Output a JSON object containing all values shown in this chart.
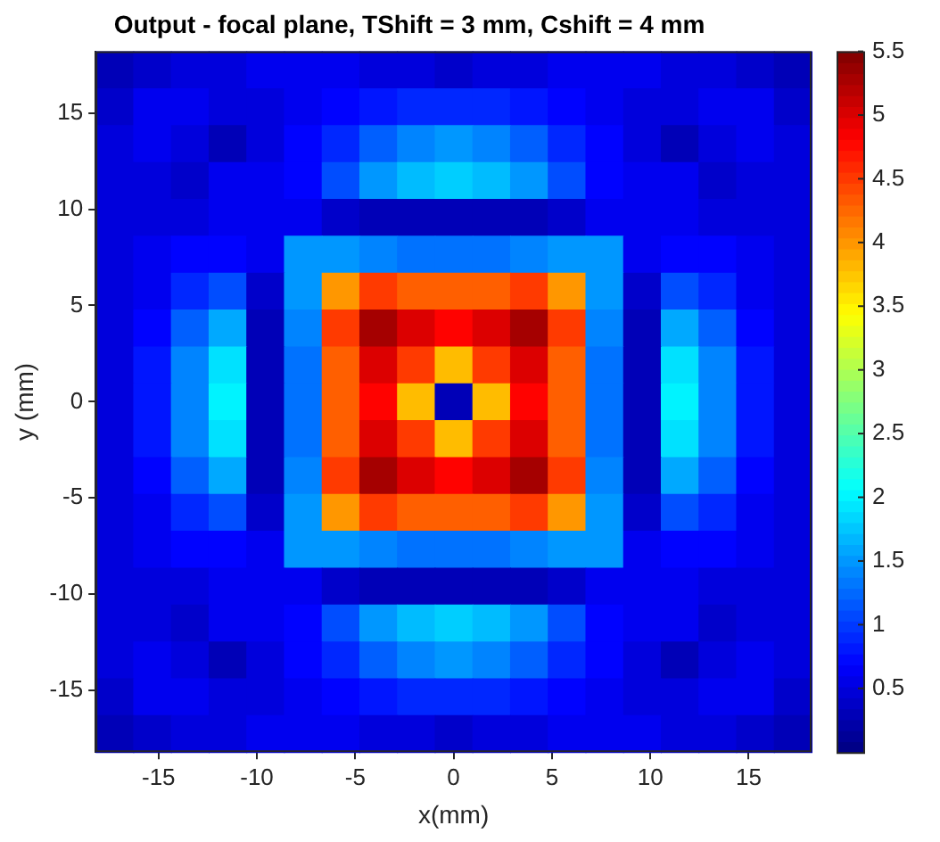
{
  "chart_data": {
    "type": "heatmap",
    "title": "Output - focal plane, TShift = 3 mm, Cshift = 4 mm",
    "xlabel": "x(mm)",
    "ylabel": "y (mm)",
    "xlim": [
      -18.2,
      18.2
    ],
    "ylim": [
      -18.2,
      18.2
    ],
    "xticks": [
      -15,
      -10,
      -5,
      0,
      5,
      10,
      15
    ],
    "yticks": [
      -15,
      -10,
      -5,
      0,
      5,
      10,
      15
    ],
    "clim": [
      0,
      5.5
    ],
    "cticks": [
      0.5,
      1,
      1.5,
      2,
      2.5,
      3,
      3.5,
      4,
      4.5,
      5,
      5.5
    ],
    "grid": false,
    "cells": [
      [
        0.3,
        0.4,
        0.5,
        0.5,
        0.6,
        0.6,
        0.6,
        0.5,
        0.5,
        0.4,
        0.5,
        0.5,
        0.6,
        0.6,
        0.6,
        0.5,
        0.5,
        0.4,
        0.3
      ],
      [
        0.4,
        0.6,
        0.6,
        0.5,
        0.5,
        0.6,
        0.7,
        0.8,
        0.9,
        0.9,
        0.9,
        0.8,
        0.7,
        0.6,
        0.5,
        0.5,
        0.6,
        0.6,
        0.4
      ],
      [
        0.5,
        0.6,
        0.5,
        0.3,
        0.5,
        0.7,
        0.9,
        1.2,
        1.4,
        1.5,
        1.4,
        1.2,
        0.9,
        0.7,
        0.5,
        0.3,
        0.5,
        0.6,
        0.5
      ],
      [
        0.5,
        0.5,
        0.4,
        0.6,
        0.6,
        0.7,
        1.1,
        1.5,
        1.7,
        1.8,
        1.7,
        1.5,
        1.1,
        0.7,
        0.6,
        0.6,
        0.4,
        0.5,
        0.5
      ],
      [
        0.5,
        0.5,
        0.5,
        0.6,
        0.6,
        0.6,
        0.4,
        0.3,
        0.3,
        0.3,
        0.3,
        0.3,
        0.4,
        0.6,
        0.6,
        0.6,
        0.5,
        0.5,
        0.5
      ],
      [
        0.5,
        0.6,
        0.7,
        0.7,
        0.6,
        1.5,
        1.5,
        1.4,
        1.3,
        1.3,
        1.3,
        1.4,
        1.5,
        1.5,
        0.6,
        0.7,
        0.7,
        0.6,
        0.5
      ],
      [
        0.5,
        0.6,
        0.9,
        1.1,
        0.4,
        1.5,
        4.0,
        4.5,
        4.3,
        4.3,
        4.3,
        4.5,
        4.0,
        1.5,
        0.4,
        1.1,
        0.9,
        0.6,
        0.5
      ],
      [
        0.5,
        0.7,
        1.2,
        1.6,
        0.3,
        1.4,
        4.5,
        5.3,
        5.0,
        4.8,
        5.0,
        5.3,
        4.5,
        1.4,
        0.3,
        1.6,
        1.2,
        0.7,
        0.5
      ],
      [
        0.5,
        0.8,
        1.4,
        1.9,
        0.3,
        1.3,
        4.3,
        5.0,
        4.5,
        3.8,
        4.5,
        5.0,
        4.3,
        1.3,
        0.3,
        1.9,
        1.4,
        0.8,
        0.5
      ],
      [
        0.5,
        0.8,
        1.4,
        2.0,
        0.3,
        1.3,
        4.3,
        4.8,
        3.8,
        0.3,
        3.8,
        4.8,
        4.3,
        1.3,
        0.3,
        2.0,
        1.4,
        0.8,
        0.5
      ],
      [
        0.5,
        0.8,
        1.4,
        1.9,
        0.3,
        1.3,
        4.3,
        5.0,
        4.5,
        3.8,
        4.5,
        5.0,
        4.3,
        1.3,
        0.3,
        1.9,
        1.4,
        0.8,
        0.5
      ],
      [
        0.5,
        0.7,
        1.2,
        1.6,
        0.3,
        1.4,
        4.5,
        5.3,
        5.0,
        4.8,
        5.0,
        5.3,
        4.5,
        1.4,
        0.3,
        1.6,
        1.2,
        0.7,
        0.5
      ],
      [
        0.5,
        0.6,
        0.9,
        1.1,
        0.4,
        1.5,
        4.0,
        4.5,
        4.3,
        4.3,
        4.3,
        4.5,
        4.0,
        1.5,
        0.4,
        1.1,
        0.9,
        0.6,
        0.5
      ],
      [
        0.5,
        0.6,
        0.7,
        0.7,
        0.6,
        1.5,
        1.5,
        1.4,
        1.3,
        1.3,
        1.3,
        1.4,
        1.5,
        1.5,
        0.6,
        0.7,
        0.7,
        0.6,
        0.5
      ],
      [
        0.5,
        0.5,
        0.5,
        0.6,
        0.6,
        0.6,
        0.4,
        0.3,
        0.3,
        0.3,
        0.3,
        0.3,
        0.4,
        0.6,
        0.6,
        0.6,
        0.5,
        0.5,
        0.5
      ],
      [
        0.5,
        0.5,
        0.4,
        0.6,
        0.6,
        0.7,
        1.1,
        1.5,
        1.7,
        1.8,
        1.7,
        1.5,
        1.1,
        0.7,
        0.6,
        0.6,
        0.4,
        0.5,
        0.5
      ],
      [
        0.5,
        0.6,
        0.5,
        0.3,
        0.5,
        0.7,
        0.9,
        1.2,
        1.4,
        1.5,
        1.4,
        1.2,
        0.9,
        0.7,
        0.5,
        0.3,
        0.5,
        0.6,
        0.5
      ],
      [
        0.4,
        0.6,
        0.6,
        0.5,
        0.5,
        0.6,
        0.7,
        0.8,
        0.9,
        0.9,
        0.9,
        0.8,
        0.7,
        0.6,
        0.5,
        0.5,
        0.6,
        0.6,
        0.4
      ],
      [
        0.3,
        0.4,
        0.5,
        0.5,
        0.6,
        0.6,
        0.6,
        0.5,
        0.5,
        0.4,
        0.5,
        0.5,
        0.6,
        0.6,
        0.6,
        0.5,
        0.5,
        0.4,
        0.3
      ]
    ]
  }
}
